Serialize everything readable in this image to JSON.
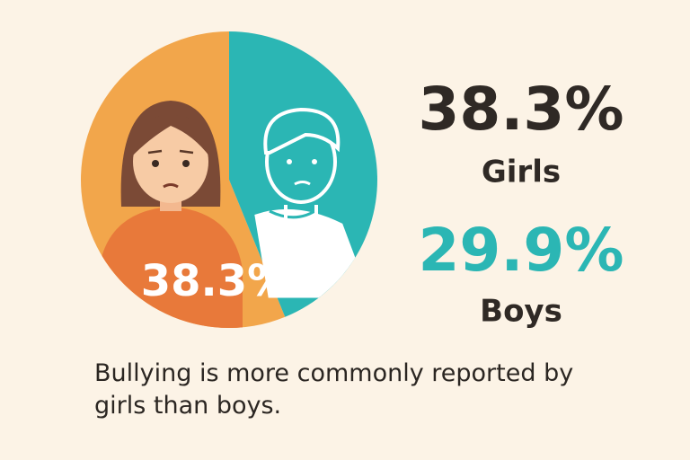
{
  "chart_data": {
    "type": "pie",
    "categories": [
      "Girls",
      "Boys"
    ],
    "values": [
      38.3,
      29.9
    ],
    "value_labels": [
      "38.3%",
      "29.9%"
    ],
    "colors": [
      "#f2a64b",
      "#2bb6b4"
    ],
    "annotation": "Bullying is more commonly reported by girls than boys."
  }
}
